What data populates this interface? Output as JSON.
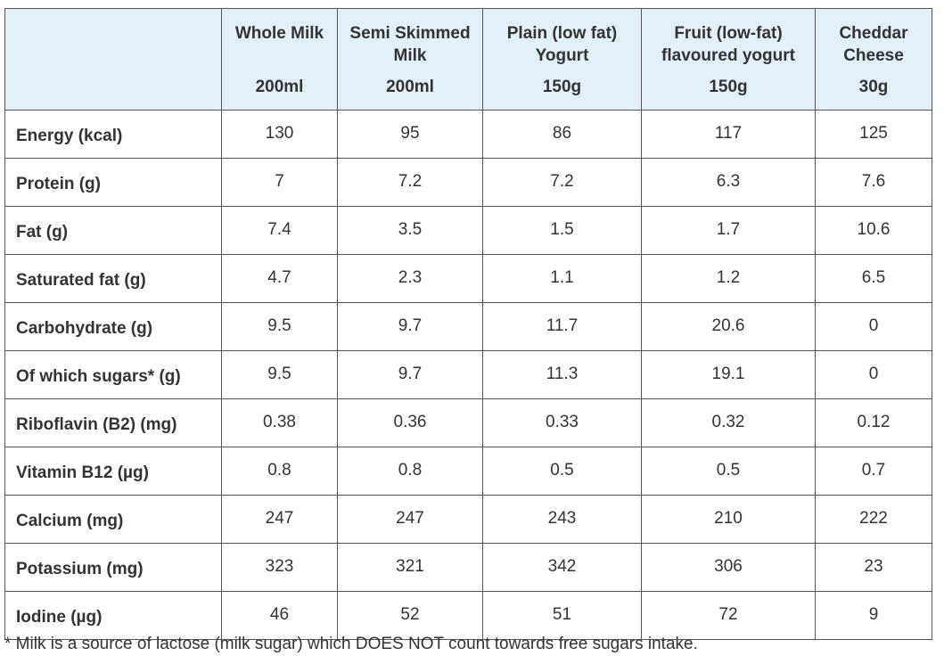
{
  "columns": [
    {
      "name": "Whole Milk",
      "unit": "200ml"
    },
    {
      "name": "Semi Skimmed Milk",
      "unit": "200ml"
    },
    {
      "name": "Plain (low fat) Yogurt",
      "unit": "150g"
    },
    {
      "name": "Fruit (low-fat) flavoured yogurt",
      "unit": "150g"
    },
    {
      "name": "Cheddar Cheese",
      "unit": "30g"
    }
  ],
  "rows": [
    {
      "label": "Energy (kcal)",
      "values": [
        "130",
        "95",
        "86",
        "117",
        "125"
      ]
    },
    {
      "label": "Protein (g)",
      "values": [
        "7",
        "7.2",
        "7.2",
        "6.3",
        "7.6"
      ]
    },
    {
      "label": "Fat (g)",
      "values": [
        "7.4",
        "3.5",
        "1.5",
        "1.7",
        "10.6"
      ]
    },
    {
      "label": "Saturated fat (g)",
      "values": [
        "4.7",
        "2.3",
        "1.1",
        "1.2",
        "6.5"
      ]
    },
    {
      "label": "Carbohydrate (g)",
      "values": [
        "9.5",
        "9.7",
        "11.7",
        "20.6",
        "0"
      ]
    },
    {
      "label": "Of which sugars* (g)",
      "values": [
        "9.5",
        "9.7",
        "11.3",
        "19.1",
        "0"
      ]
    },
    {
      "label": "Riboflavin (B2) (mg)",
      "values": [
        "0.38",
        "0.36",
        "0.33",
        "0.32",
        "0.12"
      ]
    },
    {
      "label": "Vitamin B12 (µg)",
      "values": [
        "0.8",
        "0.8",
        "0.5",
        "0.5",
        "0.7"
      ]
    },
    {
      "label": "Calcium (mg)",
      "values": [
        "247",
        "247",
        "243",
        "210",
        "222"
      ]
    },
    {
      "label": "Potassium (mg)",
      "values": [
        "323",
        "321",
        "342",
        "306",
        "23"
      ]
    },
    {
      "label": "Iodine (µg)",
      "values": [
        "46",
        "52",
        "51",
        "72",
        "9"
      ]
    }
  ],
  "footnote": "* Milk is a source of lactose (milk sugar) which DOES NOT count towards free sugars intake.",
  "colors": {
    "header_bg": "#e4f0f7",
    "border": "#555555",
    "text": "#333333"
  }
}
